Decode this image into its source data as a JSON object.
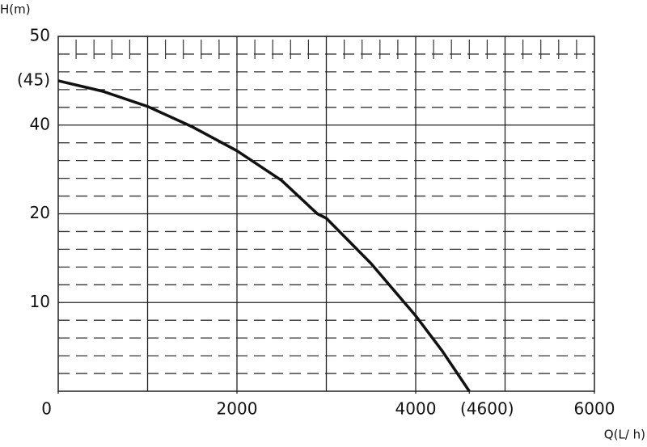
{
  "chart_data": {
    "type": "line",
    "y_label": "H(m)",
    "x_label": "Q(L/ h)",
    "x": [
      0,
      500,
      1000,
      1500,
      2000,
      2500,
      2900,
      3000,
      3500,
      4000,
      4300,
      4600
    ],
    "series": [
      {
        "color": "#111111",
        "values": [
          45,
          43.8,
          42.1,
          39.6,
          34.2,
          27.5,
          20,
          19.5,
          14.4,
          8.5,
          4.5,
          0
        ]
      }
    ],
    "xlim": [
      0,
      6000
    ],
    "xticks": [
      0,
      2000,
      4000,
      {
        "value": 4600,
        "label": "(4600)"
      },
      6000
    ],
    "ylim": [
      0,
      50
    ],
    "yticks": [
      10,
      20,
      40,
      {
        "value": 45,
        "label": "(45)"
      },
      50
    ],
    "grid": true
  }
}
